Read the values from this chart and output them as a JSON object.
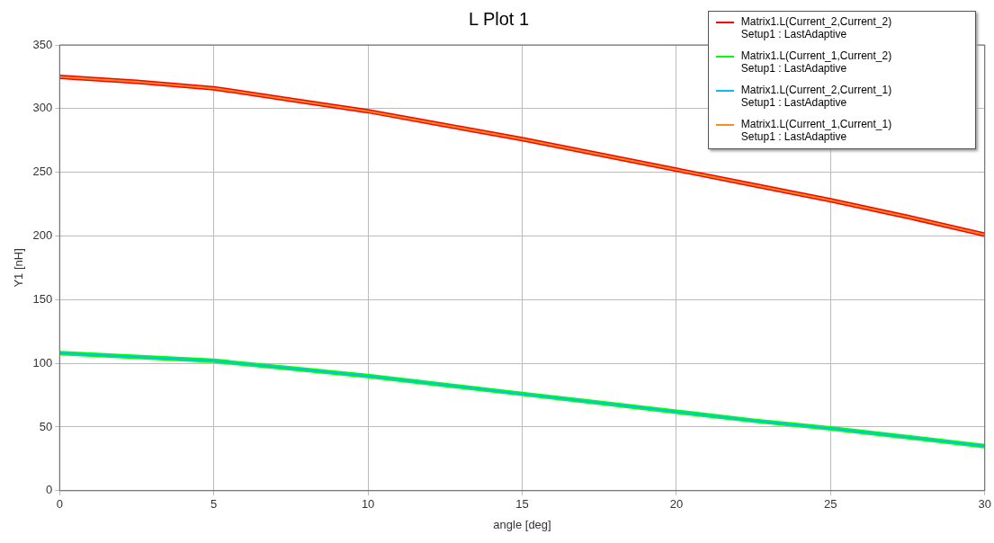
{
  "chart_data": {
    "type": "line",
    "title": "L Plot 1",
    "xlabel": "angle [deg]",
    "ylabel": "Y1 [nH]",
    "x": [
      0,
      2.5,
      5,
      7.5,
      10,
      12.5,
      15,
      17.5,
      20,
      22.5,
      25,
      27.5,
      30
    ],
    "series": [
      {
        "name": "Matrix1.L(Current_2,Current_2)\nSetup1 : LastAdaptive",
        "color": "#ff0000",
        "values": [
          325,
          321,
          316,
          307,
          298,
          287,
          276,
          264,
          252,
          240,
          228,
          215,
          201
        ]
      },
      {
        "name": "Matrix1.L(Current_1,Current_2)\nSetup1 : LastAdaptive",
        "color": "#00ff00",
        "values": [
          108,
          105,
          102,
          96,
          90,
          83,
          76,
          69,
          62,
          55,
          49,
          42,
          35
        ]
      },
      {
        "name": "Matrix1.L(Current_2,Current_1)\nSetup1 : LastAdaptive",
        "color": "#00bfff",
        "values": [
          108,
          105,
          102,
          96,
          90,
          83,
          76,
          69,
          62,
          55,
          49,
          42,
          35
        ]
      },
      {
        "name": "Matrix1.L(Current_1,Current_1)\nSetup1 : LastAdaptive",
        "color": "#ff8c1a",
        "values": [
          325,
          321,
          316,
          307,
          298,
          287,
          276,
          264,
          252,
          240,
          228,
          215,
          201
        ]
      }
    ],
    "xlim": [
      0,
      30
    ],
    "xticks": [
      0,
      5,
      10,
      15,
      20,
      25,
      30
    ],
    "ylim": [
      0,
      350
    ],
    "yticks": [
      0,
      50,
      100,
      150,
      200,
      250,
      300,
      350
    ],
    "grid": true,
    "legend": "top right",
    "marker": "none",
    "line_style": "solid"
  }
}
